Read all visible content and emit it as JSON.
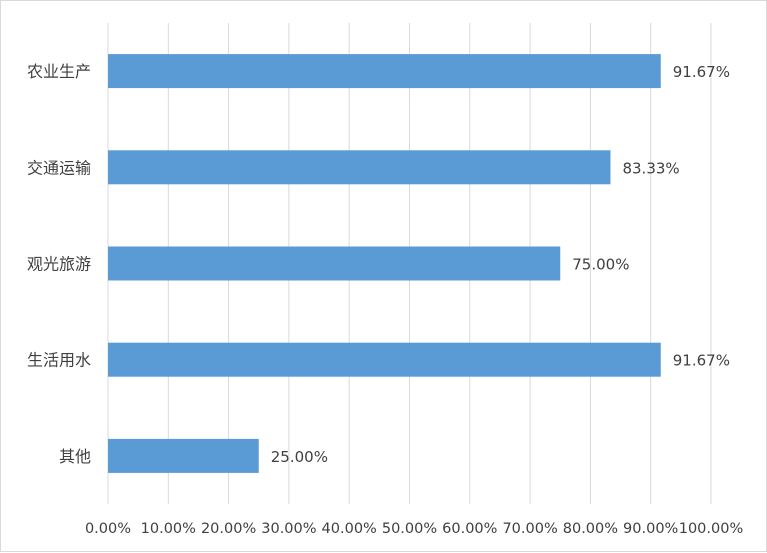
{
  "chart_data": {
    "type": "bar",
    "orientation": "horizontal",
    "title": "",
    "xlabel": "",
    "ylabel": "",
    "categories": [
      "农业生产",
      "交通运输",
      "观光旅游",
      "生活用水",
      "其他"
    ],
    "values": [
      91.67,
      83.33,
      75.0,
      91.67,
      25.0
    ],
    "data_labels": [
      "91.67%",
      "83.33%",
      "75.00%",
      "91.67%",
      "25.00%"
    ],
    "xlim": [
      0,
      100
    ],
    "x_ticks": [
      0,
      10,
      20,
      30,
      40,
      50,
      60,
      70,
      80,
      90,
      100
    ],
    "x_tick_labels": [
      "0.00%",
      "10.00%",
      "20.00%",
      "30.00%",
      "40.00%",
      "50.00%",
      "60.00%",
      "70.00%",
      "80.00%",
      "90.00%",
      "100.00%"
    ],
    "grid": "vertical",
    "legend": "none",
    "colors": {
      "bar": "#5b9bd5",
      "grid": "#d9d9d9",
      "text": "#404040"
    }
  }
}
